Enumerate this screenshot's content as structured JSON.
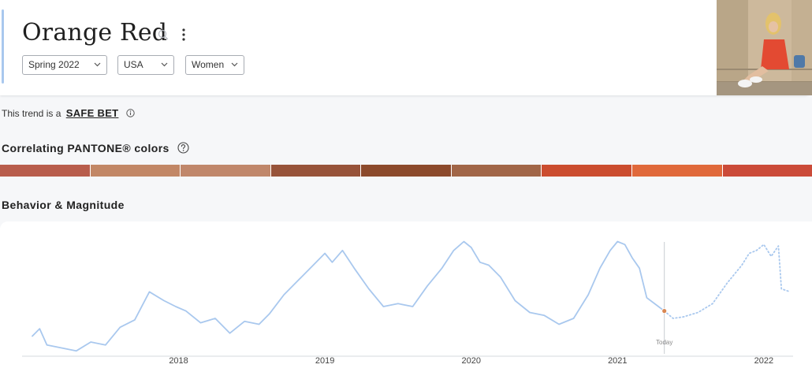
{
  "header": {
    "title": "Orange Red",
    "filters": {
      "season": "Spring 2022",
      "region": "USA",
      "gender": "Women"
    }
  },
  "trend_status": {
    "prefix": "This trend is a",
    "value": "SAFE BET"
  },
  "pantone": {
    "title": "Correlating PANTONE® colors",
    "swatches": [
      "#b85d4c",
      "#c28766",
      "#c0876b",
      "#97533a",
      "#8c4a2c",
      "#a16648",
      "#cb4d2f",
      "#e0693b",
      "#cb4b39"
    ]
  },
  "behavior": {
    "title": "Behavior & Magnitude"
  },
  "chart_data": {
    "type": "line",
    "x_tick_labels": [
      "2018",
      "2019",
      "2020",
      "2021",
      "2022"
    ],
    "today_label": "Today",
    "series": [
      {
        "style": "solid",
        "color": "#a9c8ee",
        "x": [
          2017.0,
          2017.05,
          2017.1,
          2017.2,
          2017.3,
          2017.4,
          2017.5,
          2017.6,
          2017.7,
          2017.8,
          2017.9,
          2017.98,
          2018.05,
          2018.15,
          2018.25,
          2018.35,
          2018.45,
          2018.55,
          2018.62,
          2018.72,
          2018.82,
          2018.92,
          2019.0,
          2019.05,
          2019.12,
          2019.2,
          2019.3,
          2019.4,
          2019.5,
          2019.6,
          2019.7,
          2019.8,
          2019.88,
          2019.95,
          2020.0,
          2020.06,
          2020.12,
          2020.2,
          2020.3,
          2020.4,
          2020.5,
          2020.6,
          2020.7,
          2020.8,
          2020.88,
          2020.95,
          2021.0,
          2021.05,
          2021.1,
          2021.15,
          2021.2,
          2021.32
        ],
        "y": [
          12,
          17,
          6,
          4,
          2,
          8,
          6,
          18,
          23,
          42,
          36,
          32,
          29,
          21,
          24,
          14,
          22,
          20,
          27,
          40,
          50,
          60,
          68,
          62,
          70,
          58,
          44,
          32,
          34,
          32,
          46,
          58,
          70,
          76,
          72,
          62,
          60,
          52,
          36,
          28,
          26,
          20,
          24,
          40,
          58,
          70,
          76,
          74,
          65,
          58,
          38,
          29
        ]
      },
      {
        "style": "dotted",
        "color": "#a9c8ee",
        "x": [
          2021.32,
          2021.38,
          2021.45,
          2021.55,
          2021.65,
          2021.75,
          2021.85,
          2021.9,
          2021.95,
          2022.0,
          2022.05,
          2022.1,
          2022.12,
          2022.18
        ],
        "y": [
          29,
          24,
          25,
          28,
          34,
          48,
          60,
          68,
          70,
          74,
          66,
          73,
          44,
          42
        ]
      }
    ],
    "today_point": {
      "x": 2021.32,
      "y": 29,
      "color": "#d98752"
    },
    "xlim": [
      2016.93,
      2022.2
    ],
    "ylim": [
      0,
      80
    ]
  }
}
